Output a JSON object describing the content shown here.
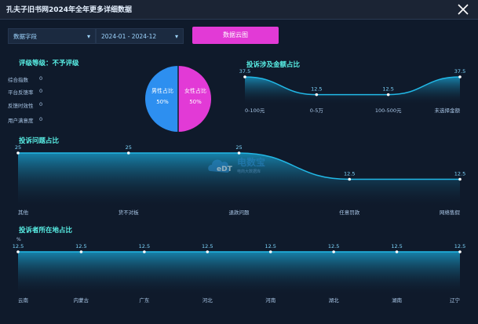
{
  "window": {
    "title": "孔夫子旧书网2024年全年更多详细数据"
  },
  "filters": {
    "field_label": "数据字段",
    "date_range": "2024-01 - 2024-12",
    "export_label": "数据云图"
  },
  "rating": {
    "title": "评级等级：不予评级",
    "metrics": [
      {
        "label": "综合指数",
        "value": "0"
      },
      {
        "label": "平台反馈率",
        "value": "0"
      },
      {
        "label": "反馈时效性",
        "value": "0"
      },
      {
        "label": "用户满意度",
        "value": "0"
      }
    ]
  },
  "gender": {
    "male_label": "男性占比",
    "male_value": "50%",
    "female_label": "女性占比",
    "female_value": "50%"
  },
  "watermark": {
    "text": "电数宝",
    "sub": "电商大数据库"
  },
  "colors": {
    "accent": "#59f0e6",
    "male": "#2d8ff0",
    "female": "#e23ad6",
    "line": "#22b8e6"
  },
  "chart_data": [
    {
      "type": "area",
      "title": "投诉涉及金额占比",
      "categories": [
        "0-100元",
        "0-5万",
        "100-500元",
        "未选择金额"
      ],
      "values": [
        37.5,
        12.5,
        12.5,
        37.5
      ]
    },
    {
      "type": "area",
      "title": "投诉问题占比",
      "categories": [
        "其他",
        "货不对板",
        "退款问题",
        "任意罚款",
        "网络售假"
      ],
      "values": [
        25,
        25,
        25,
        12.5,
        12.5
      ]
    },
    {
      "type": "area",
      "title": "投诉者所在地占比",
      "categories": [
        "云南",
        "内蒙古",
        "广东",
        "河北",
        "河南",
        "湖北",
        "湖南",
        "辽宁"
      ],
      "values": [
        12.5,
        12.5,
        12.5,
        12.5,
        12.5,
        12.5,
        12.5,
        12.5
      ],
      "ylabel": "%"
    }
  ]
}
